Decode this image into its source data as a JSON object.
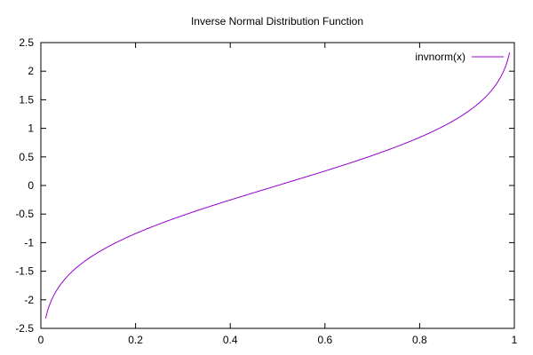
{
  "chart_data": {
    "type": "line",
    "title": "Inverse Normal Distribution Function",
    "xlabel": "",
    "ylabel": "",
    "xlim": [
      0,
      1
    ],
    "ylim": [
      -2.5,
      2.5
    ],
    "x_ticks": [
      "0",
      "0.2",
      "0.4",
      "0.6",
      "0.8",
      "1"
    ],
    "x_tick_values": [
      0,
      0.2,
      0.4,
      0.6,
      0.8,
      1
    ],
    "y_ticks": [
      "-2.5",
      "-2",
      "-1.5",
      "-1",
      "-0.5",
      "0",
      "0.5",
      "1",
      "1.5",
      "2",
      "2.5"
    ],
    "y_tick_values": [
      -2.5,
      -2,
      -1.5,
      -1,
      -0.5,
      0,
      0.5,
      1,
      1.5,
      2,
      2.5
    ],
    "grid": false,
    "legend_position": "top-right",
    "series": [
      {
        "name": "invnorm(x)",
        "color": "#9400d3",
        "x": [
          0.01,
          0.02,
          0.03,
          0.04,
          0.05,
          0.06,
          0.08,
          0.1,
          0.12,
          0.15,
          0.2,
          0.25,
          0.3,
          0.35,
          0.4,
          0.45,
          0.5,
          0.55,
          0.6,
          0.65,
          0.7,
          0.75,
          0.8,
          0.85,
          0.88,
          0.9,
          0.92,
          0.94,
          0.95,
          0.96,
          0.97,
          0.98,
          0.99
        ],
        "y": [
          -2.326,
          -2.054,
          -1.881,
          -1.751,
          -1.645,
          -1.555,
          -1.405,
          -1.282,
          -1.175,
          -1.036,
          -0.842,
          -0.674,
          -0.524,
          -0.385,
          -0.253,
          -0.126,
          0.0,
          0.126,
          0.253,
          0.385,
          0.524,
          0.674,
          0.842,
          1.036,
          1.175,
          1.282,
          1.405,
          1.555,
          1.645,
          1.751,
          1.881,
          2.054,
          2.326
        ]
      }
    ]
  }
}
